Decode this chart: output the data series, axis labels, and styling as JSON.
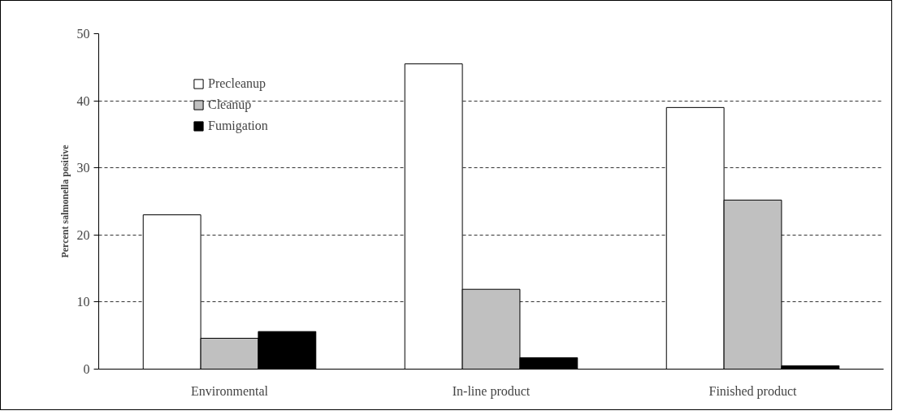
{
  "chart_data": {
    "type": "bar",
    "ylabel": "Percent salmonella positive",
    "categories": [
      "Environmental",
      "In-line product",
      "Finished product"
    ],
    "series": [
      {
        "name": "Precleanup",
        "color": "#ffffff",
        "values": [
          23,
          45.5,
          39
        ]
      },
      {
        "name": "Cleanup",
        "color": "#c0c0c0",
        "values": [
          4.6,
          11.9,
          25.2
        ]
      },
      {
        "name": "Fumigation",
        "color": "#000000",
        "values": [
          5.6,
          1.7,
          0.5
        ]
      }
    ],
    "ylim": [
      0,
      50
    ],
    "yticks": [
      0,
      10,
      20,
      30,
      40,
      50
    ],
    "grid": "y",
    "legend": "top left"
  }
}
